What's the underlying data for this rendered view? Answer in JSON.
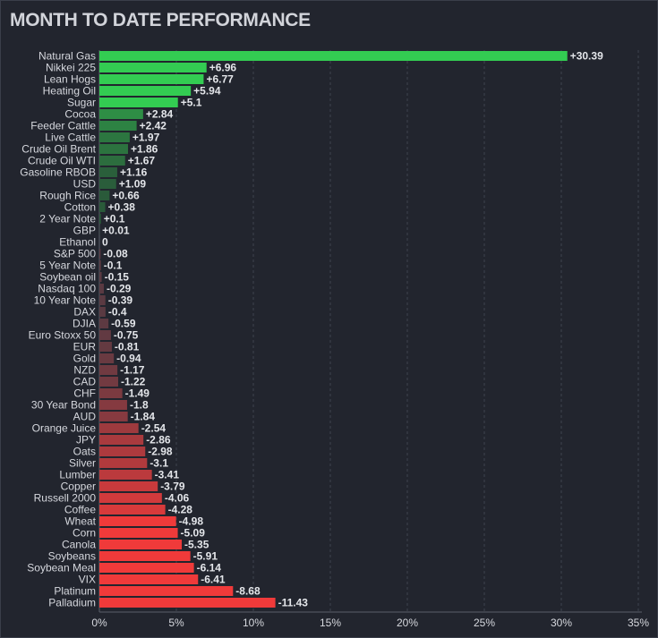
{
  "title": "MONTH TO DATE PERFORMANCE",
  "colors": {
    "background": "#22252e",
    "grid": "#3e424d",
    "axis": "#5a5e69",
    "text": "#d6d8de",
    "positive_strong": "#33cc52",
    "positive_weak": "#2a5a3a",
    "negative_weak": "#5a3a42",
    "negative_strong": "#f03a3a"
  },
  "chart_data": {
    "type": "bar",
    "orientation": "horizontal",
    "title": "MONTH TO DATE PERFORMANCE",
    "xlabel": "",
    "ylabel": "",
    "xlim": [
      0,
      35
    ],
    "xticks": [
      0,
      5,
      10,
      15,
      20,
      25,
      30,
      35
    ],
    "xtick_labels": [
      "0%",
      "5%",
      "10%",
      "15%",
      "20%",
      "25%",
      "30%",
      "35%"
    ],
    "value_basis": "absolute magnitude; sign shown by color and label",
    "grid": "vertical dashed",
    "categories": [
      "Natural Gas",
      "Nikkei 225",
      "Lean Hogs",
      "Heating Oil",
      "Sugar",
      "Cocoa",
      "Feeder Cattle",
      "Live Cattle",
      "Crude Oil Brent",
      "Crude Oil WTI",
      "Gasoline RBOB",
      "USD",
      "Rough Rice",
      "Cotton",
      "2 Year Note",
      "GBP",
      "Ethanol",
      "S&P 500",
      "5 Year Note",
      "Soybean oil",
      "Nasdaq 100",
      "10 Year Note",
      "DAX",
      "DJIA",
      "Euro Stoxx 50",
      "EUR",
      "Gold",
      "NZD",
      "CAD",
      "CHF",
      "30 Year Bond",
      "AUD",
      "Orange Juice",
      "JPY",
      "Oats",
      "Silver",
      "Lumber",
      "Copper",
      "Russell 2000",
      "Coffee",
      "Wheat",
      "Corn",
      "Canola",
      "Soybeans",
      "Soybean Meal",
      "VIX",
      "Platinum",
      "Palladium"
    ],
    "values": [
      30.39,
      6.96,
      6.77,
      5.94,
      5.1,
      2.84,
      2.42,
      1.97,
      1.86,
      1.67,
      1.16,
      1.09,
      0.66,
      0.38,
      0.1,
      0.01,
      0,
      -0.08,
      -0.1,
      -0.15,
      -0.29,
      -0.39,
      -0.4,
      -0.59,
      -0.75,
      -0.81,
      -0.94,
      -1.17,
      -1.22,
      -1.49,
      -1.8,
      -1.84,
      -2.54,
      -2.86,
      -2.98,
      -3.1,
      -3.41,
      -3.79,
      -4.06,
      -4.28,
      -4.98,
      -5.09,
      -5.35,
      -5.91,
      -6.14,
      -6.41,
      -8.68,
      -11.43
    ],
    "value_labels": [
      "+30.39",
      "+6.96",
      "+6.77",
      "+5.94",
      "+5.1",
      "+2.84",
      "+2.42",
      "+1.97",
      "+1.86",
      "+1.67",
      "+1.16",
      "+1.09",
      "+0.66",
      "+0.38",
      "+0.1",
      "+0.01",
      "0",
      "-0.08",
      "-0.1",
      "-0.15",
      "-0.29",
      "-0.39",
      "-0.4",
      "-0.59",
      "-0.75",
      "-0.81",
      "-0.94",
      "-1.17",
      "-1.22",
      "-1.49",
      "-1.8",
      "-1.84",
      "-2.54",
      "-2.86",
      "-2.98",
      "-3.1",
      "-3.41",
      "-3.79",
      "-4.06",
      "-4.28",
      "-4.98",
      "-5.09",
      "-5.35",
      "-5.91",
      "-6.14",
      "-6.41",
      "-8.68",
      "-11.43"
    ]
  }
}
